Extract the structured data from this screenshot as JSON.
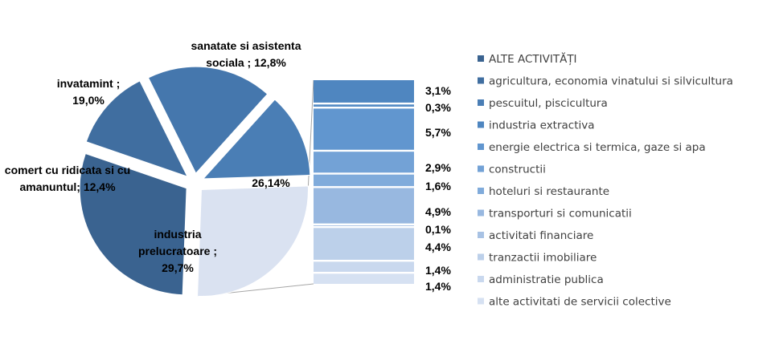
{
  "chart_data": {
    "type": "bar-of-pie",
    "pie": {
      "slices": [
        {
          "label_lines": [
            "sanatate si asistenta",
            "sociala ; 12,8%"
          ],
          "value": 12.8,
          "color": "#4a7eb5"
        },
        {
          "label_lines": [
            "26,14%"
          ],
          "value": 26.14,
          "color": "#dae2f1",
          "is_other": true
        },
        {
          "label_lines": [
            "industria",
            "prelucratoare ;",
            "29,7%"
          ],
          "value": 29.7,
          "color": "#3a6390"
        },
        {
          "label_lines": [
            "comert cu ridicata si cu",
            "amanuntul; 12,4%"
          ],
          "value": 12.4,
          "color": "#406ea0"
        },
        {
          "label_lines": [
            "invatamint ;",
            "19,0%"
          ],
          "value": 19.0,
          "color": "#4577ad"
        }
      ]
    },
    "bar": {
      "segments": [
        {
          "label": "3,1%",
          "value": 3.1,
          "color": "#4f86c0"
        },
        {
          "label": "0,3%",
          "value": 0.3,
          "color": "#568cc5"
        },
        {
          "label": "5,7%",
          "value": 5.7,
          "color": "#6196cf"
        },
        {
          "label": "2,9%",
          "value": 2.9,
          "color": "#73a2d6"
        },
        {
          "label": "1,6%",
          "value": 1.6,
          "color": "#80abdb"
        },
        {
          "label": "4,9%",
          "value": 4.9,
          "color": "#98b8e0"
        },
        {
          "label": "0,1%",
          "value": 0.1,
          "color": "#a8c2e4"
        },
        {
          "label": "4,4%",
          "value": 4.4,
          "color": "#bcd0ea"
        },
        {
          "label": "1,4%",
          "value": 1.4,
          "color": "#c9d8ee"
        },
        {
          "label": "1,4%",
          "value": 1.4,
          "color": "#d6e1f2"
        }
      ]
    },
    "legend": [
      {
        "label": "ALTE ACTIVITĂȚI",
        "color": "#3a6390"
      },
      {
        "label": "agricultura, economia vinatului si silvicultura",
        "color": "#406ea0"
      },
      {
        "label": "pescuitul, piscicultura",
        "color": "#4a7eb5"
      },
      {
        "label": "industria extractiva",
        "color": "#4f86c0"
      },
      {
        "label": "energie electrica si termica, gaze si apa",
        "color": "#6196cf"
      },
      {
        "label": "constructii",
        "color": "#73a2d6"
      },
      {
        "label": "hoteluri si restaurante",
        "color": "#80abdb"
      },
      {
        "label": "transporturi si comunicatii",
        "color": "#98b8e0"
      },
      {
        "label": "activitati financiare",
        "color": "#a8c2e4"
      },
      {
        "label": "tranzactii imobiliare",
        "color": "#bcd0ea"
      },
      {
        "label": "administratie publica",
        "color": "#c9d8ee"
      },
      {
        "label": "alte activitati de servicii colective",
        "color": "#d6e1f2"
      }
    ],
    "legend_position": "right"
  }
}
